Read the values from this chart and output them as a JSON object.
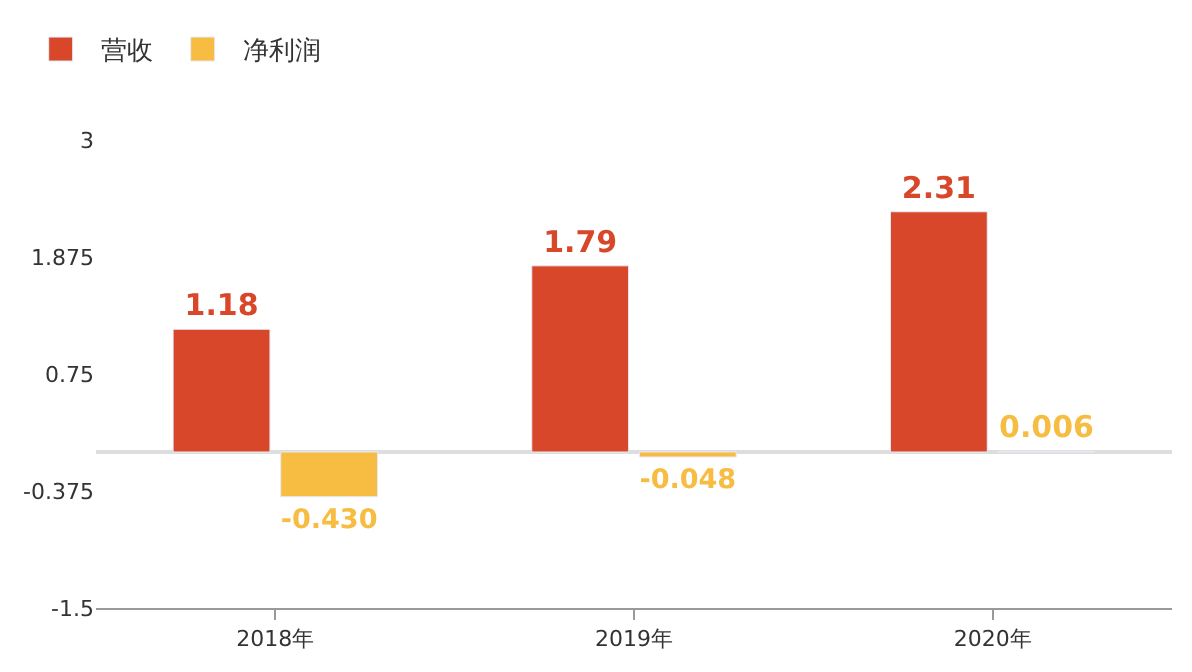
{
  "chart_data": {
    "type": "bar",
    "categories": [
      "2018年",
      "2019年",
      "2020年"
    ],
    "series": [
      {
        "name": "营收",
        "color": "#d9472b",
        "values": [
          1.18,
          1.79,
          2.31
        ],
        "value_labels": [
          "1.18",
          "1.79",
          "2.31"
        ]
      },
      {
        "name": "净利润",
        "color": "#f7bd43",
        "values": [
          -0.43,
          -0.048,
          0.006
        ],
        "value_labels": [
          "-0.430",
          "-0.048",
          "0.006"
        ]
      }
    ],
    "ylim": [
      -1.5,
      3
    ],
    "yticks": [
      3,
      1.875,
      0.75,
      -0.375,
      -1.5
    ],
    "legend": "top left"
  }
}
